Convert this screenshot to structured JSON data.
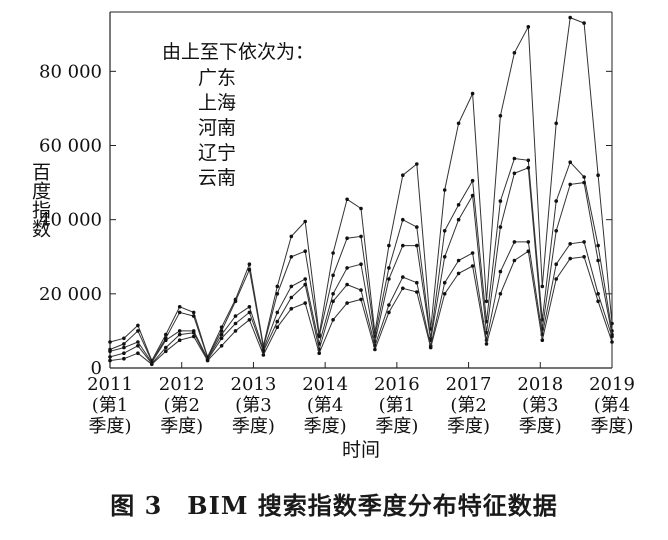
{
  "figure_caption": "图 3　BIM 搜索指数季度分布特征数据",
  "chart_data": {
    "type": "line",
    "title": "",
    "xlabel": "时间",
    "ylabel": "百度指数",
    "ylim": [
      0,
      96000
    ],
    "yticks": [
      0,
      20000,
      40000,
      60000,
      80000
    ],
    "ytick_labels": [
      "0",
      "20 000",
      "40 000",
      "60 000",
      "80 000"
    ],
    "xtick_labels": [
      [
        "2011",
        "(第1",
        "季度)"
      ],
      [
        "2012",
        "(第2",
        "季度)"
      ],
      [
        "2013",
        "(第3",
        "季度)"
      ],
      [
        "2014",
        "(第4",
        "季度)"
      ],
      [
        "2016",
        "(第1",
        "季度)"
      ],
      [
        "2017",
        "(第2",
        "季度)"
      ],
      [
        "2018",
        "(第3",
        "季度)"
      ],
      [
        "2019",
        "(第4",
        "季度)"
      ]
    ],
    "xlim": [
      0,
      36
    ],
    "x": [
      0,
      1,
      2,
      3,
      4,
      5,
      6,
      7,
      8,
      9,
      10,
      11,
      12,
      13,
      14,
      15,
      16,
      17,
      18,
      19,
      20,
      21,
      22,
      23,
      24,
      25,
      26,
      27,
      28,
      29,
      30,
      31,
      32,
      33,
      34,
      35,
      36
    ],
    "legend_heading": "由上至下依次为：",
    "legend_labels": [
      "广东",
      "上海",
      "河南",
      "辽宁",
      "云南"
    ],
    "series": [
      {
        "name": "广东",
        "values": [
          7000,
          8000,
          11500,
          2000,
          9000,
          16500,
          15000,
          3000,
          11000,
          18500,
          28000,
          6000,
          22000,
          35500,
          39500,
          9000,
          31000,
          45500,
          43000,
          9500,
          33000,
          52000,
          55000,
          10500,
          48000,
          66000,
          74000,
          18000,
          68000,
          85000,
          92000,
          22000,
          66000,
          94500,
          93000,
          52000,
          12000
        ]
      },
      {
        "name": "上海",
        "values": [
          5000,
          6500,
          10000,
          1800,
          8000,
          15000,
          14000,
          2800,
          10000,
          18000,
          26500,
          5500,
          20000,
          30000,
          31500,
          8500,
          25000,
          35000,
          35500,
          8500,
          27000,
          40000,
          38000,
          8000,
          37000,
          44000,
          50500,
          12500,
          45000,
          56500,
          56000,
          13000,
          45000,
          55500,
          51500,
          33000,
          10000
        ]
      },
      {
        "name": "河南",
        "values": [
          4500,
          5500,
          7000,
          1500,
          7500,
          10000,
          10000,
          2500,
          9000,
          14000,
          16500,
          5000,
          15000,
          22000,
          24000,
          6500,
          20000,
          27000,
          28000,
          7000,
          24000,
          33000,
          33000,
          7500,
          30000,
          40000,
          46500,
          9500,
          38000,
          52500,
          54000,
          10500,
          37000,
          49500,
          50000,
          29000,
          9000
        ]
      },
      {
        "name": "辽宁",
        "values": [
          3000,
          4000,
          6000,
          1200,
          5500,
          9000,
          9500,
          2200,
          8000,
          12000,
          15000,
          4500,
          12500,
          19000,
          22500,
          5000,
          18000,
          22500,
          21000,
          6000,
          17000,
          24500,
          23000,
          6000,
          23000,
          29000,
          31000,
          7500,
          26000,
          34000,
          34000,
          9000,
          28000,
          33500,
          34000,
          20000,
          8500
        ]
      },
      {
        "name": "云南",
        "values": [
          2000,
          2500,
          4000,
          1000,
          4500,
          7500,
          8500,
          2000,
          6000,
          10000,
          13000,
          3500,
          11000,
          16000,
          17500,
          4000,
          13000,
          17500,
          18500,
          5000,
          15000,
          21500,
          20500,
          5500,
          20000,
          25500,
          27500,
          6500,
          20000,
          29000,
          31500,
          7500,
          24000,
          29500,
          30000,
          18000,
          7000
        ]
      }
    ]
  }
}
